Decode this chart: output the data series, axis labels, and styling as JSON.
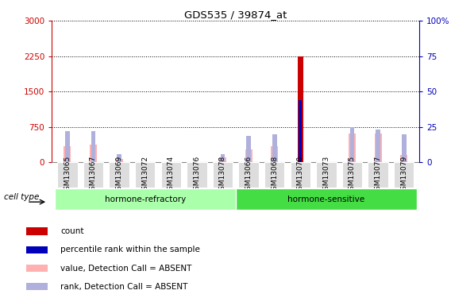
{
  "title": "GDS535 / 39874_at",
  "samples": [
    "GSM13065",
    "GSM13067",
    "GSM13069",
    "GSM13072",
    "GSM13074",
    "GSM13076",
    "GSM13078",
    "GSM13066",
    "GSM13068",
    "GSM13070",
    "GSM13073",
    "GSM13075",
    "GSM13077",
    "GSM13079"
  ],
  "count_values": [
    0,
    0,
    0,
    0,
    0,
    0,
    0,
    0,
    0,
    2250,
    0,
    0,
    0,
    0
  ],
  "rank_values": [
    0,
    0,
    0,
    0,
    0,
    0,
    0,
    0,
    0,
    44,
    0,
    0,
    0,
    0
  ],
  "absent_value_bars": [
    340,
    380,
    70,
    0,
    0,
    0,
    100,
    270,
    340,
    0,
    0,
    610,
    610,
    160
  ],
  "absent_rank_bars": [
    22,
    22,
    6,
    0,
    0,
    0,
    6,
    19,
    20,
    0,
    0,
    25,
    23,
    20
  ],
  "ylim_left": [
    0,
    3000
  ],
  "ylim_right": [
    0,
    100
  ],
  "yticks_left": [
    0,
    750,
    1500,
    2250,
    3000
  ],
  "yticks_right": [
    0,
    25,
    50,
    75,
    100
  ],
  "left_tick_color": "#cc0000",
  "right_tick_color": "#0000bb",
  "bar_color_count": "#cc0000",
  "bar_color_rank": "#0000bb",
  "bar_color_absent_value": "#ffb0b0",
  "bar_color_absent_rank": "#b0b0dd",
  "group_light": "#aaffaa",
  "group_dark": "#44dd44",
  "bg_color": "#ffffff",
  "plot_bg": "#ffffff",
  "cell_type_label": "cell type",
  "legend_items": [
    {
      "label": "count",
      "color": "#cc0000"
    },
    {
      "label": "percentile rank within the sample",
      "color": "#0000bb"
    },
    {
      "label": "value, Detection Call = ABSENT",
      "color": "#ffb0b0"
    },
    {
      "label": "rank, Detection Call = ABSENT",
      "color": "#b0b0dd"
    }
  ]
}
